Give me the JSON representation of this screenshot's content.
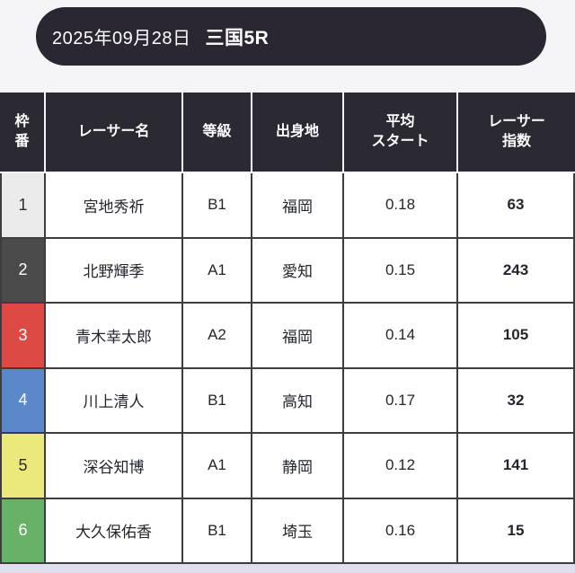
{
  "title_bar": {
    "date": "2025年09月28日",
    "race": "三国5R"
  },
  "table": {
    "columns": [
      {
        "label": "枠\n番"
      },
      {
        "label": "レーサー名"
      },
      {
        "label": "等級"
      },
      {
        "label": "出身地"
      },
      {
        "label": "平均\nスタート"
      },
      {
        "label": "レーサー\n指数"
      }
    ],
    "rows": [
      {
        "frame": "1",
        "name": "宮地秀祈",
        "grade": "B1",
        "origin": "福岡",
        "avg_start": "0.18",
        "index": "63",
        "frame_bg": "#ebebeb",
        "frame_color": "#2c2c2c"
      },
      {
        "frame": "2",
        "name": "北野輝季",
        "grade": "A1",
        "origin": "愛知",
        "avg_start": "0.15",
        "index": "243",
        "frame_bg": "#4b4b4b",
        "frame_color": "#ffffff"
      },
      {
        "frame": "3",
        "name": "青木幸太郎",
        "grade": "A2",
        "origin": "福岡",
        "avg_start": "0.14",
        "index": "105",
        "frame_bg": "#dd4a43",
        "frame_color": "#ffffff"
      },
      {
        "frame": "4",
        "name": "川上清人",
        "grade": "B1",
        "origin": "高知",
        "avg_start": "0.17",
        "index": "32",
        "frame_bg": "#5a88c8",
        "frame_color": "#ffffff"
      },
      {
        "frame": "5",
        "name": "深谷知博",
        "grade": "A1",
        "origin": "静岡",
        "avg_start": "0.12",
        "index": "141",
        "frame_bg": "#ece97c",
        "frame_color": "#2c2c2c"
      },
      {
        "frame": "6",
        "name": "大久保佑香",
        "grade": "B1",
        "origin": "埼玉",
        "avg_start": "0.16",
        "index": "15",
        "frame_bg": "#67b169",
        "frame_color": "#ffffff"
      }
    ]
  },
  "colors": {
    "page_bg": "#f5f4f7",
    "pill_bg": "#2a2732",
    "header_cell_bg": "#2b2a33",
    "body_border": "#3d3d41",
    "footer_strip": "#dfdfef"
  }
}
